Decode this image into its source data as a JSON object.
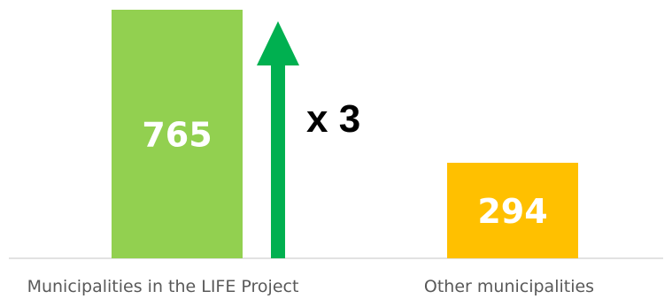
{
  "chart_data": {
    "type": "bar",
    "categories": [
      "Municipalities in the LIFE Project",
      "Other municipalities"
    ],
    "values": [
      765,
      294
    ],
    "data_labels": [
      "765",
      "294"
    ],
    "bar_colors": [
      "#92d050",
      "#ffc000"
    ],
    "data_label_color": "#ffffff",
    "annotation": {
      "text": "x 3",
      "arrow_color": "#00b050"
    },
    "axis_line_color": "#d9d9d9",
    "label_color": "#595959",
    "grid": false,
    "ylim": [
      0,
      765
    ],
    "title": "",
    "xlabel": "",
    "ylabel": ""
  }
}
